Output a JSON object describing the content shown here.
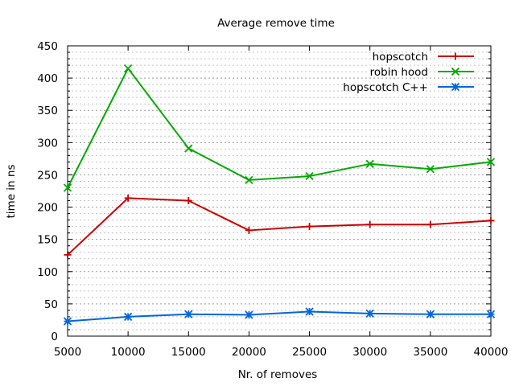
{
  "chart_data": {
    "type": "line",
    "title": "Average remove time",
    "xlabel": "Nr. of removes",
    "ylabel": "time in ns",
    "x": [
      5000,
      10000,
      15000,
      20000,
      25000,
      30000,
      35000,
      40000
    ],
    "xlim": [
      5000,
      40000
    ],
    "ylim": [
      0,
      450
    ],
    "xticks": [
      "5000",
      "10000",
      "15000",
      "20000",
      "25000",
      "30000",
      "35000",
      "40000"
    ],
    "yticks": [
      "0",
      "50",
      "100",
      "150",
      "200",
      "250",
      "300",
      "350",
      "400",
      "450"
    ],
    "grid": true,
    "legend_position": "top-right",
    "series": [
      {
        "name": "hopscotch",
        "color": "#cc0000",
        "marker": "plus",
        "values": [
          126,
          214,
          210,
          164,
          170,
          173,
          173,
          179
        ]
      },
      {
        "name": "robin hood",
        "color": "#00aa00",
        "marker": "cross",
        "values": [
          230,
          415,
          291,
          242,
          248,
          267,
          259,
          270
        ]
      },
      {
        "name": "hopscotch C++",
        "color": "#0066dd",
        "marker": "star",
        "values": [
          23,
          30,
          34,
          33,
          38,
          35,
          34,
          34
        ]
      }
    ]
  }
}
